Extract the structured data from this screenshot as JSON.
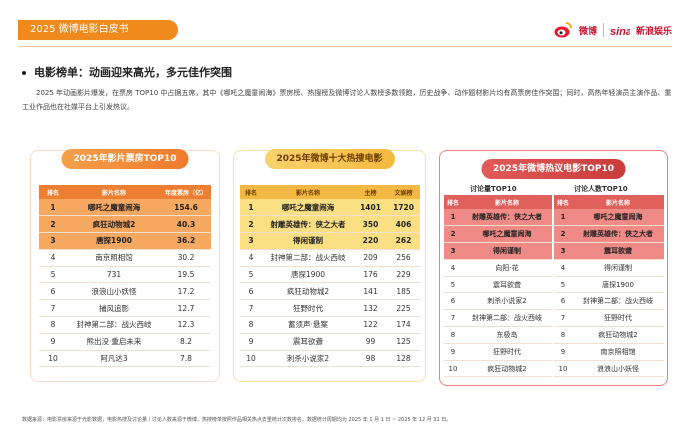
{
  "header": {
    "badge": "2025 微博电影白皮书",
    "logo_weibo": "微博",
    "logo_sina": "新浪娱乐",
    "brand_color": "#f08a1d"
  },
  "section": {
    "title": "电影榜单：动画迎来高光，多元佳作突围",
    "paragraph": "2025 年动画影片爆发，在票房 TOP10 中占据五席，其中《哪吒之魔童闹海》票房榜、热搜榜及微博讨论人数榜多数领跑，历史战争、动作题材影片均有高票房佳作突围；同时，高热年轻演员主演作品、重工业作品也在社媒平台上引发热议。"
  },
  "box_office": {
    "title": "2025年影片票房TOP10",
    "headers": [
      "排名",
      "影片名称",
      "年度票房（亿）"
    ],
    "rows": [
      {
        "rank": "1",
        "name": "哪吒之魔童闹海",
        "value": "154.6"
      },
      {
        "rank": "2",
        "name": "疯狂动物城2",
        "value": "40.3"
      },
      {
        "rank": "3",
        "name": "唐探1900",
        "value": "36.2"
      },
      {
        "rank": "4",
        "name": "南京照相馆",
        "value": "30.2"
      },
      {
        "rank": "5",
        "name": "731",
        "value": "19.5"
      },
      {
        "rank": "6",
        "name": "浪浪山小妖怪",
        "value": "17.2"
      },
      {
        "rank": "7",
        "name": "捕风追影",
        "value": "12.7"
      },
      {
        "rank": "8",
        "name": "封神第二部：战火西岐",
        "value": "12.3"
      },
      {
        "rank": "9",
        "name": "熊出没·重启未来",
        "value": "8.2"
      },
      {
        "rank": "10",
        "name": "阿凡达3",
        "value": "7.8"
      }
    ]
  },
  "hot_search": {
    "title": "2025年微博十大热搜电影",
    "headers": [
      "排名",
      "影片名称",
      "主榜",
      "文娱榜"
    ],
    "rows": [
      {
        "rank": "1",
        "name": "哪吒之魔童闹海",
        "main": "1401",
        "ent": "1720"
      },
      {
        "rank": "2",
        "name": "射雕英雄传：侠之大者",
        "main": "350",
        "ent": "406"
      },
      {
        "rank": "3",
        "name": "得闲谨制",
        "main": "220",
        "ent": "262"
      },
      {
        "rank": "4",
        "name": "封神第二部：战火西岐",
        "main": "209",
        "ent": "256"
      },
      {
        "rank": "5",
        "name": "唐探1900",
        "main": "176",
        "ent": "229"
      },
      {
        "rank": "6",
        "name": "疯狂动物城2",
        "main": "141",
        "ent": "185"
      },
      {
        "rank": "7",
        "name": "狂野时代",
        "main": "132",
        "ent": "225"
      },
      {
        "rank": "8",
        "name": "蓄须声·悬案",
        "main": "122",
        "ent": "174"
      },
      {
        "rank": "9",
        "name": "震耳欲聋",
        "main": "99",
        "ent": "125"
      },
      {
        "rank": "10",
        "name": "刺杀小说家2",
        "main": "98",
        "ent": "128"
      }
    ]
  },
  "discussion": {
    "title": "2025年微博热议电影TOP10",
    "volume": {
      "subtitle": "讨论量TOP10",
      "headers": [
        "排名",
        "影片名称"
      ],
      "rows": [
        {
          "rank": "1",
          "name": "射雕英雄传：侠之大者"
        },
        {
          "rank": "2",
          "name": "哪吒之魔童闹海"
        },
        {
          "rank": "3",
          "name": "得闲谨制"
        },
        {
          "rank": "4",
          "name": "向阳·花"
        },
        {
          "rank": "5",
          "name": "震耳欲聋"
        },
        {
          "rank": "6",
          "name": "刺杀小说家2"
        },
        {
          "rank": "7",
          "name": "封神第二部：战火西岐"
        },
        {
          "rank": "8",
          "name": "东极岛"
        },
        {
          "rank": "9",
          "name": "狂野时代"
        },
        {
          "rank": "10",
          "name": "疯狂动物城2"
        }
      ]
    },
    "people": {
      "subtitle": "讨论人数TOP10",
      "headers": [
        "排名",
        "影片名称"
      ],
      "rows": [
        {
          "rank": "1",
          "name": "哪吒之魔童闹海"
        },
        {
          "rank": "2",
          "name": "射雕英雄传：侠之大者"
        },
        {
          "rank": "3",
          "name": "震耳欲聋"
        },
        {
          "rank": "4",
          "name": "得闲谨制"
        },
        {
          "rank": "5",
          "name": "唐探1900"
        },
        {
          "rank": "6",
          "name": "封神第二部：战火西岐"
        },
        {
          "rank": "7",
          "name": "狂野时代"
        },
        {
          "rank": "8",
          "name": "疯狂动物城2"
        },
        {
          "rank": "9",
          "name": "南京照相馆"
        },
        {
          "rank": "10",
          "name": "浪浪山小妖怪"
        }
      ]
    }
  },
  "footnote": "数据来源：电影票房来源于光影数据，电影热搜及讨论量 / 讨论人数来源于微博，热搜榜单按照作品相关热点去重统计次数排名，数据统计周期均为 2025 年 1 月 1 日 ~ 2025 年 12 月 31 日。"
}
